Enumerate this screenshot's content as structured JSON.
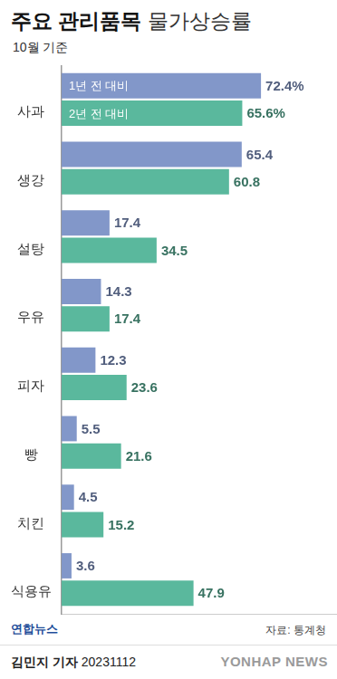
{
  "chart_data": {
    "type": "bar",
    "orientation": "horizontal",
    "title": "주요 관리품목 물가상승률",
    "subtitle": "10월 기준",
    "source": "자료: 통계청",
    "logo_text": "연합뉴스",
    "byline": "김민지 기자 20231112",
    "watermark": "YONHAP NEWS",
    "categories": [
      "사과",
      "생강",
      "설탕",
      "우유",
      "피자",
      "빵",
      "치킨",
      "식용유"
    ],
    "series": [
      {
        "name": "1년 전 대비",
        "color": "#8297c9",
        "values": [
          72.4,
          65.4,
          17.4,
          14.3,
          12.3,
          5.5,
          4.5,
          3.6
        ],
        "value_labels": [
          "72.4%",
          "65.4",
          "17.4",
          "14.3",
          "12.3",
          "5.5",
          "4.5",
          "3.6"
        ]
      },
      {
        "name": "2년 전 대비",
        "color": "#5ab89d",
        "values": [
          65.6,
          60.8,
          34.5,
          17.4,
          23.6,
          21.6,
          15.2,
          47.9
        ],
        "value_labels": [
          "65.6%",
          "60.8",
          "34.5",
          "17.4",
          "23.6",
          "21.6",
          "15.2",
          "47.9"
        ]
      }
    ],
    "xlim": [
      0,
      100
    ],
    "grid": false,
    "data_labels": true,
    "tick_labels": "y"
  }
}
